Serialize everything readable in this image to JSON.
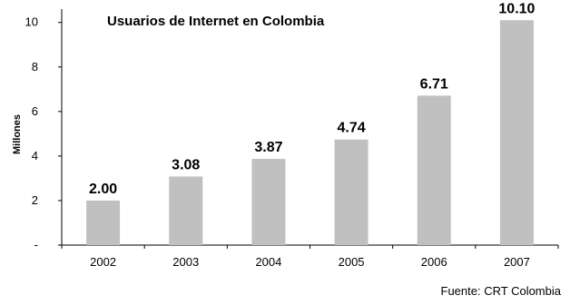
{
  "chart_data": {
    "type": "bar",
    "title": "Usuarios de Internet en Colombia",
    "xlabel": "",
    "ylabel": "Millones",
    "categories": [
      "2002",
      "2003",
      "2004",
      "2005",
      "2006",
      "2007"
    ],
    "values": [
      2.0,
      3.08,
      3.87,
      4.74,
      6.71,
      10.1
    ],
    "value_labels": [
      "2.00",
      "3.08",
      "3.87",
      "4.74",
      "6.71",
      "10.10"
    ],
    "ylim": [
      0,
      10.6
    ],
    "y_ticks": [
      0,
      2,
      4,
      6,
      8,
      10
    ],
    "y_tick_labels": [
      "-",
      "2",
      "4",
      "6",
      "8",
      "10"
    ],
    "grid": false,
    "legend": "none",
    "bar_color": "#c0c0c0"
  },
  "source": "Fuente: CRT Colombia"
}
